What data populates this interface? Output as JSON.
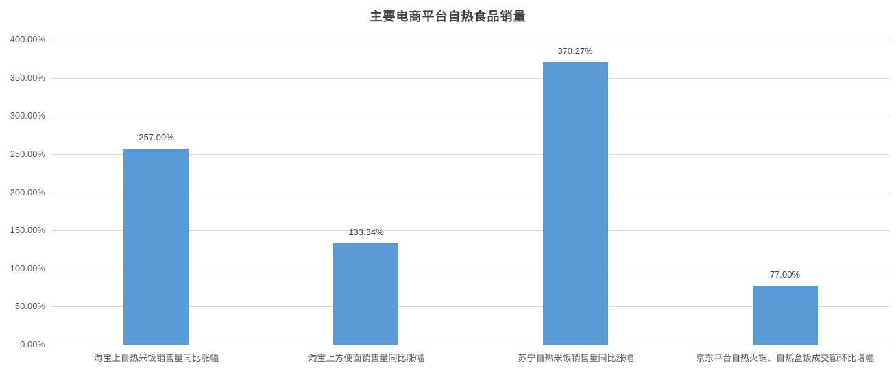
{
  "chart_data": {
    "type": "bar",
    "title": "主要电商平台自热食品销量",
    "categories": [
      "淘宝上自热米饭销售量同比涨幅",
      "淘宝上方便面销售量同比涨幅",
      "苏宁自热米饭销售量同比涨幅",
      "京东平台自热火锅、自热盒饭成交额环比增幅"
    ],
    "values": [
      257.09,
      133.34,
      370.27,
      77.0
    ],
    "data_labels": [
      "257.09%",
      "133.34%",
      "370.27%",
      "77.00%"
    ],
    "xlabel": "",
    "ylabel": "",
    "ylim": [
      0,
      400
    ],
    "ytick_step": 50,
    "ytick_labels": [
      "0.00%",
      "50.00%",
      "100.00%",
      "150.00%",
      "200.00%",
      "250.00%",
      "300.00%",
      "350.00%",
      "400.00%"
    ],
    "grid": true,
    "legend_position": "none",
    "colors": {
      "bar": "#5B9BD5",
      "gridline": "#D9D9D9",
      "axis_line": "#BFBFBF",
      "tick_text": "#595959",
      "category_text": "#595959",
      "data_label_text": "#404040",
      "title_text": "#404040"
    }
  }
}
